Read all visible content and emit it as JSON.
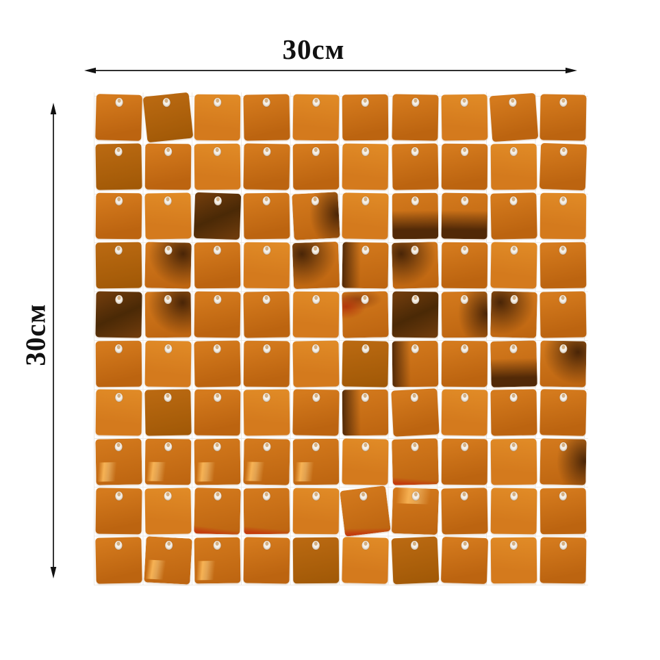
{
  "annotations": {
    "top_label": "30см",
    "left_label": "30см"
  },
  "panel": {
    "rows": 10,
    "cols": 10,
    "description": "orange square sequin shimmer wall panel, 10x10 sequins, each with hanging hole",
    "colors": {
      "base": "#d47a1d",
      "base_deep": "#bc6410",
      "bright": "#e08a26",
      "shade": "#bb6a12",
      "shade_deep": "#a05806",
      "dark": "#6e3b0c",
      "dark_deep": "#4a2906",
      "red": "#c33c0e",
      "hole": "#f6f1e9",
      "pin": "#d2a876",
      "backing_line": "#e9e5df",
      "arrow": "#111111"
    },
    "cells": [
      [
        [
          1.5,
          "p"
        ],
        [
          -6,
          "s"
        ],
        [
          0.5,
          "q"
        ],
        [
          -1,
          "p"
        ],
        [
          0.8,
          "q"
        ],
        [
          -0.5,
          "p"
        ],
        [
          1,
          "p"
        ],
        [
          -0.8,
          "q"
        ],
        [
          -4,
          "p"
        ],
        [
          1,
          "p"
        ]
      ],
      [
        [
          -1,
          "s"
        ],
        [
          0.5,
          "p"
        ],
        [
          -0.6,
          "q"
        ],
        [
          1,
          "p"
        ],
        [
          -0.4,
          "p"
        ],
        [
          0.7,
          "q"
        ],
        [
          -1,
          "p"
        ],
        [
          0.4,
          "p"
        ],
        [
          -0.6,
          "q"
        ],
        [
          2,
          "p"
        ]
      ],
      [
        [
          0.6,
          "p"
        ],
        [
          -1,
          "q"
        ],
        [
          2,
          "D"
        ],
        [
          -0.8,
          "p"
        ],
        [
          -3,
          "dr"
        ],
        [
          1,
          "q"
        ],
        [
          -0.5,
          "db"
        ],
        [
          0.8,
          "db"
        ],
        [
          -1.2,
          "p"
        ],
        [
          0.5,
          "q"
        ]
      ],
      [
        [
          -0.8,
          "s"
        ],
        [
          1.2,
          "dtr"
        ],
        [
          -0.5,
          "p"
        ],
        [
          0.6,
          "q"
        ],
        [
          -2,
          "dtl"
        ],
        [
          0.9,
          "dl"
        ],
        [
          -1.5,
          "dtl"
        ],
        [
          0.5,
          "p"
        ],
        [
          1,
          "q"
        ],
        [
          -0.7,
          "p"
        ]
      ],
      [
        [
          1,
          "D"
        ],
        [
          -0.6,
          "dtr"
        ],
        [
          0.8,
          "p"
        ],
        [
          -1,
          "p"
        ],
        [
          0.5,
          "q"
        ],
        [
          -1.2,
          "rl"
        ],
        [
          0.7,
          "D"
        ],
        [
          -0.5,
          "dr"
        ],
        [
          1.4,
          "dtl"
        ],
        [
          -1,
          "p"
        ]
      ],
      [
        [
          -0.5,
          "p"
        ],
        [
          0.8,
          "q"
        ],
        [
          -1,
          "p"
        ],
        [
          0.6,
          "p"
        ],
        [
          -0.9,
          "q"
        ],
        [
          1.1,
          "s"
        ],
        [
          -0.6,
          "dl"
        ],
        [
          0.4,
          "p"
        ],
        [
          -1.3,
          "db"
        ],
        [
          0.9,
          "dtr"
        ]
      ],
      [
        [
          0.7,
          "q"
        ],
        [
          -1.1,
          "s"
        ],
        [
          0.5,
          "p"
        ],
        [
          -0.7,
          "q"
        ],
        [
          1,
          "p"
        ],
        [
          -0.5,
          "dl"
        ],
        [
          -3,
          "p"
        ],
        [
          0.8,
          "q"
        ],
        [
          -0.9,
          "p"
        ],
        [
          1.2,
          "p"
        ]
      ],
      [
        [
          -1,
          "h"
        ],
        [
          0.6,
          "h"
        ],
        [
          -0.8,
          "h"
        ],
        [
          1.1,
          "h"
        ],
        [
          -0.5,
          "h"
        ],
        [
          0.9,
          "q"
        ],
        [
          -1.4,
          "rb"
        ],
        [
          0.5,
          "p"
        ],
        [
          -0.7,
          "q"
        ],
        [
          1,
          "dr"
        ]
      ],
      [
        [
          0.8,
          "p"
        ],
        [
          -0.9,
          "q"
        ],
        [
          1.2,
          "rb"
        ],
        [
          -0.6,
          "rb"
        ],
        [
          0.5,
          "q"
        ],
        [
          -7,
          "rb"
        ],
        [
          2,
          "ht"
        ],
        [
          -1,
          "p"
        ],
        [
          0.7,
          "q"
        ],
        [
          -0.5,
          "p"
        ]
      ],
      [
        [
          -1.2,
          "p"
        ],
        [
          3,
          "h"
        ],
        [
          -0.8,
          "h"
        ],
        [
          0.9,
          "p"
        ],
        [
          -0.5,
          "s"
        ],
        [
          1.3,
          "q"
        ],
        [
          -2.5,
          "s"
        ],
        [
          1.8,
          "p"
        ],
        [
          -0.6,
          "q"
        ],
        [
          0.8,
          "p"
        ]
      ]
    ]
  }
}
